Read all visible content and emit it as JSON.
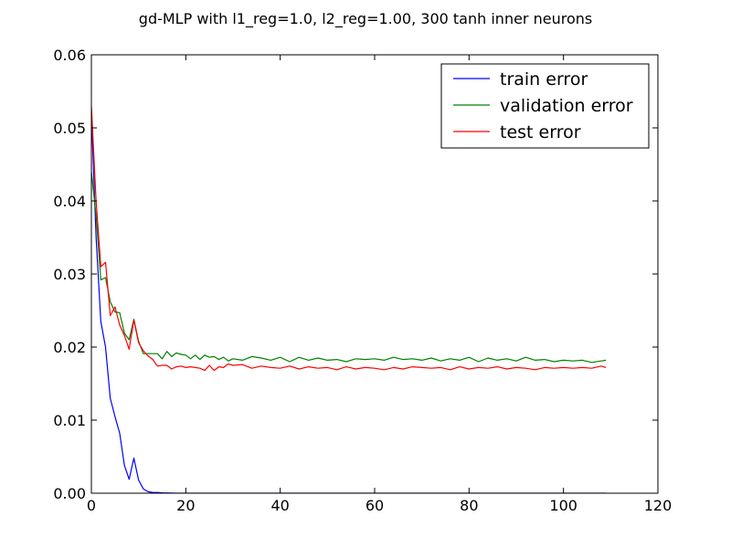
{
  "chart_data": {
    "type": "line",
    "title": "gd-MLP with l1_reg=1.0, l2_reg=1.00, 300 tanh inner neurons",
    "xlabel": "",
    "ylabel": "",
    "xlim": [
      0,
      120
    ],
    "ylim": [
      0,
      0.06
    ],
    "x_ticks": [
      0,
      20,
      40,
      60,
      80,
      100,
      120
    ],
    "x_tick_labels": [
      "0",
      "20",
      "40",
      "60",
      "80",
      "100",
      "120"
    ],
    "y_ticks": [
      0,
      0.01,
      0.02,
      0.03,
      0.04,
      0.05,
      0.06
    ],
    "y_tick_labels": [
      "0.00",
      "0.01",
      "0.02",
      "0.03",
      "0.04",
      "0.05",
      "0.06"
    ],
    "grid": false,
    "legend_position": "top-right",
    "series": [
      {
        "name": "train error",
        "color": "#0000ff",
        "x": [
          0,
          1,
          2,
          3,
          4,
          5,
          6,
          7,
          8,
          9,
          10,
          11,
          12,
          13,
          14,
          15,
          16,
          17,
          18,
          19,
          20,
          22,
          24,
          26,
          28,
          30,
          35,
          40,
          45,
          50,
          55,
          60,
          65,
          70,
          75,
          80,
          85,
          90,
          95,
          100,
          105,
          109
        ],
        "y": [
          0.052,
          0.035,
          0.0235,
          0.02,
          0.013,
          0.0105,
          0.0082,
          0.0038,
          0.0019,
          0.0048,
          0.0018,
          0.0006,
          0.0002,
          0.0001,
          0.0001,
          5e-05,
          3e-05,
          2e-05,
          1e-05,
          0,
          0,
          0,
          0,
          0,
          0,
          0,
          0,
          0,
          0,
          0,
          0,
          0,
          0,
          0,
          0,
          0,
          0,
          0,
          0,
          0,
          0,
          0
        ]
      },
      {
        "name": "validation error",
        "color": "#008000",
        "x": [
          0,
          1,
          2,
          3,
          4,
          5,
          6,
          7,
          8,
          9,
          10,
          11,
          12,
          13,
          14,
          15,
          16,
          17,
          18,
          19,
          20,
          21,
          22,
          23,
          24,
          25,
          26,
          27,
          28,
          29,
          30,
          32,
          34,
          36,
          38,
          40,
          42,
          44,
          46,
          48,
          50,
          52,
          54,
          56,
          58,
          60,
          62,
          64,
          66,
          68,
          70,
          72,
          74,
          76,
          78,
          80,
          82,
          84,
          86,
          88,
          90,
          92,
          94,
          96,
          98,
          100,
          102,
          104,
          106,
          108,
          109
        ],
        "y": [
          0.044,
          0.038,
          0.0292,
          0.0295,
          0.0262,
          0.0248,
          0.0247,
          0.0219,
          0.021,
          0.0238,
          0.0208,
          0.0191,
          0.0191,
          0.0191,
          0.0191,
          0.0184,
          0.0194,
          0.0187,
          0.0192,
          0.019,
          0.0189,
          0.0184,
          0.0189,
          0.0183,
          0.0189,
          0.0186,
          0.0187,
          0.0183,
          0.0186,
          0.0181,
          0.0184,
          0.0182,
          0.0187,
          0.0185,
          0.0182,
          0.0186,
          0.018,
          0.0186,
          0.0182,
          0.0185,
          0.0182,
          0.0183,
          0.018,
          0.0184,
          0.0183,
          0.0184,
          0.0182,
          0.0186,
          0.0183,
          0.0184,
          0.0182,
          0.0185,
          0.0181,
          0.0184,
          0.0182,
          0.0186,
          0.018,
          0.0185,
          0.0182,
          0.0184,
          0.0181,
          0.0186,
          0.0182,
          0.0183,
          0.018,
          0.0182,
          0.0181,
          0.0182,
          0.0179,
          0.0181,
          0.0182
        ]
      },
      {
        "name": "test error",
        "color": "#ff0000",
        "x": [
          0,
          1,
          2,
          3,
          4,
          5,
          6,
          7,
          8,
          9,
          10,
          11,
          12,
          13,
          14,
          15,
          16,
          17,
          18,
          19,
          20,
          21,
          22,
          23,
          24,
          25,
          26,
          27,
          28,
          29,
          30,
          32,
          34,
          36,
          38,
          40,
          42,
          44,
          46,
          48,
          50,
          52,
          54,
          56,
          58,
          60,
          62,
          64,
          66,
          68,
          70,
          72,
          74,
          76,
          78,
          80,
          82,
          84,
          86,
          88,
          90,
          92,
          94,
          96,
          98,
          100,
          102,
          104,
          106,
          108,
          109
        ],
        "y": [
          0.053,
          0.04,
          0.031,
          0.0316,
          0.0243,
          0.0255,
          0.023,
          0.0216,
          0.0197,
          0.0237,
          0.0206,
          0.0195,
          0.0188,
          0.0183,
          0.0174,
          0.0175,
          0.0175,
          0.017,
          0.0173,
          0.0174,
          0.0172,
          0.0173,
          0.0172,
          0.0171,
          0.0168,
          0.0175,
          0.0168,
          0.0173,
          0.0172,
          0.0177,
          0.0175,
          0.0176,
          0.0171,
          0.0174,
          0.0172,
          0.0171,
          0.0174,
          0.017,
          0.0173,
          0.0171,
          0.0172,
          0.0169,
          0.0173,
          0.017,
          0.0172,
          0.0171,
          0.0169,
          0.0172,
          0.017,
          0.0173,
          0.0172,
          0.0171,
          0.0172,
          0.0169,
          0.0173,
          0.017,
          0.0172,
          0.0171,
          0.0173,
          0.017,
          0.0172,
          0.0171,
          0.0169,
          0.0172,
          0.0171,
          0.0172,
          0.0171,
          0.0172,
          0.0171,
          0.0174,
          0.0172
        ]
      }
    ]
  }
}
